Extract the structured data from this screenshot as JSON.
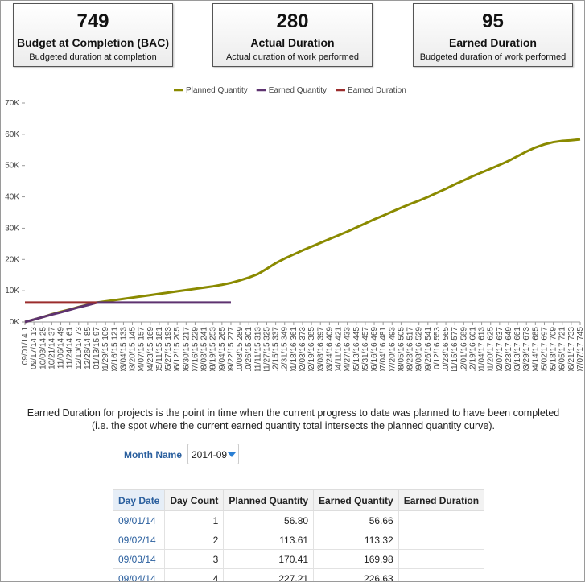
{
  "cards": [
    {
      "value": 749,
      "title": "Budget at Completion (BAC)",
      "subtitle": "Budgeted duration at completion"
    },
    {
      "value": 280,
      "title": "Actual Duration",
      "subtitle": "Actual duration of work performed"
    },
    {
      "value": 95,
      "title": "Earned Duration",
      "subtitle": "Budgeted duration of work performed"
    }
  ],
  "chart_data": {
    "type": "line",
    "categories": [
      "09/01/14 1",
      "09/17/14 13",
      "10/03/14 25",
      "10/21/14 37",
      "11/06/14 49",
      "11/24/14 61",
      "12/10/14 73",
      "12/26/14 85",
      "01/13/15 97",
      "01/29/15 109",
      "02/16/15 121",
      "03/04/15 133",
      "03/20/15 145",
      "04/07/15 157",
      "04/23/15 169",
      "05/11/15 181",
      "05/27/15 193",
      "06/12/15 205",
      "06/30/15 217",
      "07/16/15 229",
      "08/03/15 241",
      "08/19/15 253",
      "09/04/15 265",
      "09/22/15 277",
      "10/08/15 289",
      "10/26/15 301",
      "11/11/15 313",
      "11/27/15 325",
      "12/15/15 337",
      "12/31/15 349",
      "01/18/16 361",
      "02/03/16 373",
      "02/19/16 385",
      "03/08/16 397",
      "03/24/16 409",
      "04/11/16 421",
      "04/27/16 433",
      "05/13/16 445",
      "05/31/16 457",
      "06/16/16 469",
      "07/04/16 481",
      "07/20/16 493",
      "08/05/16 505",
      "08/23/16 517",
      "09/08/16 529",
      "09/26/16 541",
      "10/12/16 553",
      "10/28/16 565",
      "11/15/16 577",
      "12/01/16 589",
      "12/19/16 601",
      "01/04/17 613",
      "01/20/17 625",
      "02/07/17 637",
      "02/23/17 649",
      "03/13/17 661",
      "03/29/17 673",
      "04/14/17 685",
      "05/02/17 697",
      "05/18/17 709",
      "06/05/17 721",
      "06/21/17 733",
      "07/07/17 745"
    ],
    "series": [
      {
        "name": "Planned Quantity",
        "color": "#8a8a00",
        "values": [
          0,
          800,
          1600,
          2500,
          3300,
          4000,
          4800,
          5500,
          6200,
          6600,
          7000,
          7400,
          7800,
          8200,
          8600,
          9000,
          9400,
          9800,
          10200,
          10600,
          11000,
          11400,
          11900,
          12500,
          13300,
          14200,
          15300,
          17000,
          18800,
          20300,
          21600,
          22900,
          24100,
          25300,
          26500,
          27700,
          28900,
          30200,
          31500,
          32800,
          34000,
          35300,
          36500,
          37700,
          38800,
          40000,
          41300,
          42600,
          44000,
          45300,
          46600,
          47800,
          49000,
          50200,
          51500,
          53000,
          54500,
          55800,
          56800,
          57500,
          57900,
          58100,
          58400
        ]
      },
      {
        "name": "Earned Quantity",
        "color": "#5e3370",
        "values": [
          0,
          800,
          1600,
          2400,
          3100,
          3900,
          4700,
          5400,
          6200,
          6200,
          6200,
          6200,
          6200,
          6200,
          6200,
          6200,
          6200,
          6200,
          6200,
          6200,
          6200,
          6200,
          6200,
          6200,
          null,
          null,
          null,
          null,
          null,
          null,
          null,
          null,
          null,
          null,
          null,
          null,
          null,
          null,
          null,
          null,
          null,
          null,
          null,
          null,
          null,
          null,
          null,
          null,
          null,
          null,
          null,
          null,
          null,
          null,
          null,
          null,
          null,
          null,
          null,
          null,
          null,
          null,
          null
        ]
      },
      {
        "name": "Earned Duration",
        "color": "#9b2d2d",
        "values": [
          6200,
          6200,
          6200,
          6200,
          6200,
          6200,
          6200,
          6200,
          6200,
          null,
          null,
          null,
          null,
          null,
          null,
          null,
          null,
          null,
          null,
          null,
          null,
          null,
          null,
          null,
          null,
          null,
          null,
          null,
          null,
          null,
          null,
          null,
          null,
          null,
          null,
          null,
          null,
          null,
          null,
          null,
          null,
          null,
          null,
          null,
          null,
          null,
          null,
          null,
          null,
          null,
          null,
          null,
          null,
          null,
          null,
          null,
          null,
          null,
          null,
          null,
          null,
          null,
          null
        ]
      }
    ],
    "ylim": [
      0,
      70000
    ],
    "yticks": [
      {
        "value": 0,
        "label": "0K"
      },
      {
        "value": 10000,
        "label": "10K"
      },
      {
        "value": 20000,
        "label": "20K"
      },
      {
        "value": 30000,
        "label": "30K"
      },
      {
        "value": 40000,
        "label": "40K"
      },
      {
        "value": 50000,
        "label": "50K"
      },
      {
        "value": 60000,
        "label": "60K"
      },
      {
        "value": 70000,
        "label": "70K"
      }
    ],
    "legend_position": "top",
    "grid": false
  },
  "description": [
    "Earned Duration for projects is the point in time when the current progress to date was planned to have been completed",
    "(i.e. the spot where the current earned quantity total intersects the planned quantity curve)."
  ],
  "filter": {
    "label": "Month Name",
    "value": "2014-09"
  },
  "table": {
    "columns": [
      "Day Date",
      "Day Count",
      "Planned Quantity",
      "Earned Quantity",
      "Earned Duration"
    ],
    "rows": [
      [
        "09/01/14",
        "1",
        "56.80",
        "56.66"
      ],
      [
        "09/02/14",
        "2",
        "113.61",
        "113.32"
      ],
      [
        "09/03/14",
        "3",
        "170.41",
        "169.98"
      ],
      [
        "09/04/14",
        "4",
        "227.21",
        "226.63"
      ]
    ]
  }
}
